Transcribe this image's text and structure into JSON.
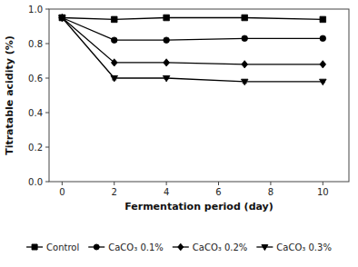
{
  "chart_data": {
    "type": "line",
    "xlabel": "Fermentation period (day)",
    "ylabel": "Titratable acidity (%)",
    "x": [
      0,
      2,
      4,
      7,
      10
    ],
    "series": [
      {
        "name": "Control",
        "color": "#000000",
        "marker": "square",
        "line_style": "solid",
        "values": [
          0.95,
          0.94,
          0.95,
          0.95,
          0.94
        ],
        "errors": [
          0.005,
          0.005,
          0.005,
          0.005,
          0.005
        ]
      },
      {
        "name": "CaCO₃ 0.1%",
        "color": "#000000",
        "marker": "circle",
        "line_style": "solid",
        "values": [
          0.95,
          0.82,
          0.82,
          0.83,
          0.83
        ],
        "errors": [
          0.005,
          0.008,
          0.005,
          0.008,
          0.005
        ]
      },
      {
        "name": "CaCO₃ 0.2%",
        "color": "#000000",
        "marker": "diamond",
        "line_style": "solid",
        "values": [
          0.95,
          0.69,
          0.69,
          0.68,
          0.68
        ],
        "errors": [
          0.005,
          0.008,
          0.005,
          0.005,
          0.005
        ]
      },
      {
        "name": "CaCO₃ 0.3%",
        "color": "#000000",
        "marker": "triangle-down",
        "line_style": "solid",
        "values": [
          0.95,
          0.6,
          0.6,
          0.58,
          0.58
        ],
        "errors": [
          0.005,
          0.01,
          0.005,
          0.01,
          0.005
        ]
      }
    ],
    "xlim": [
      -0.5,
      11.0
    ],
    "ylim": [
      0.0,
      1.0
    ],
    "xticks": [
      0,
      2,
      4,
      6,
      8,
      10
    ],
    "yticks": [
      {
        "value": 0.0,
        "label": "0.0"
      },
      {
        "value": 0.2,
        "label": "0.2"
      },
      {
        "value": 0.4,
        "label": "0.4"
      },
      {
        "value": 0.6,
        "label": "0.6"
      },
      {
        "value": 0.8,
        "label": "0.8"
      },
      {
        "value": 1.0,
        "label": "1.0"
      }
    ],
    "grid": false,
    "legend": "bottom"
  }
}
